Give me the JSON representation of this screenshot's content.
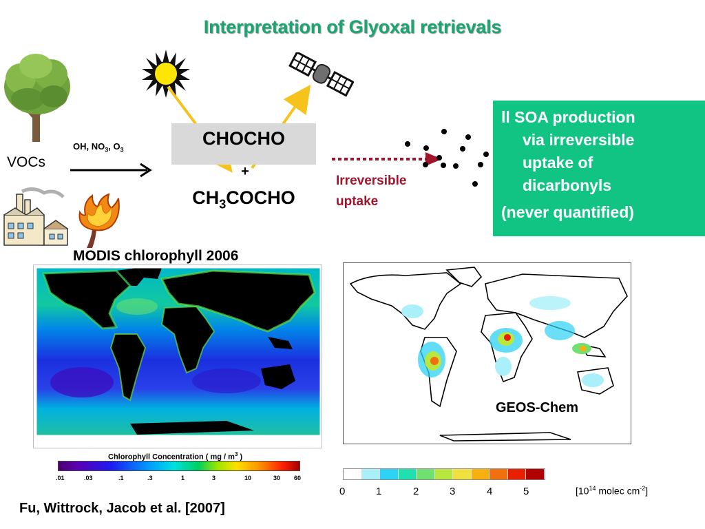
{
  "title": "Interpretation of Glyoxal retrievals",
  "vocs_label": "VOCs",
  "oxidants": {
    "oh": "OH, NO",
    "sub1": "3",
    "comma": ", O",
    "sub2": "3"
  },
  "chocho_label": "CHOCHO",
  "plus_label": "+",
  "ch3_prefix": "CH",
  "ch3_sub": "3",
  "ch3_suffix": "COCHO",
  "irreversible": {
    "line1": "Irreversible",
    "line2": "uptake"
  },
  "soa_box": {
    "line1": "ll SOA production",
    "line2": "via irreversible",
    "line3": "uptake of",
    "line4": "dicarbonyls",
    "line5": "(never quantified)"
  },
  "modis_title": "MODIS chlorophyll  2006",
  "geos_label": "GEOS-Chem",
  "chl_colorbar": {
    "title_main": "Chlorophyll Concentration  ( mg / m",
    "title_sup": "3",
    "title_end": " )",
    "ticks": [
      ".01",
      ".03",
      ".1",
      ".3",
      "1",
      "3",
      "10",
      "30",
      "60"
    ]
  },
  "geos_colorbar": {
    "ticks": [
      "0",
      "1",
      "2",
      "3",
      "4",
      "5"
    ],
    "colors": [
      "#ffffff",
      "#aaf0fa",
      "#2ed2f5",
      "#20e0b0",
      "#70e070",
      "#b8e840",
      "#f0e040",
      "#f8b010",
      "#f07010",
      "#e82000",
      "#b00000"
    ],
    "units_pre": "[10",
    "units_sup1": "14",
    "units_mid": " molec cm",
    "units_sup2": "-2",
    "units_end": "]"
  },
  "citation": "Fu, Wittrock, Jacob et al. [2007]",
  "colors": {
    "title": "#1aa572",
    "soa_box": "#11c484",
    "irreversible": "#a0142c",
    "arrow_yellow": "#f5c31c"
  },
  "icons": [
    "tree-icon",
    "factory-icon",
    "fire-icon",
    "sun-icon",
    "satellite-icon"
  ]
}
